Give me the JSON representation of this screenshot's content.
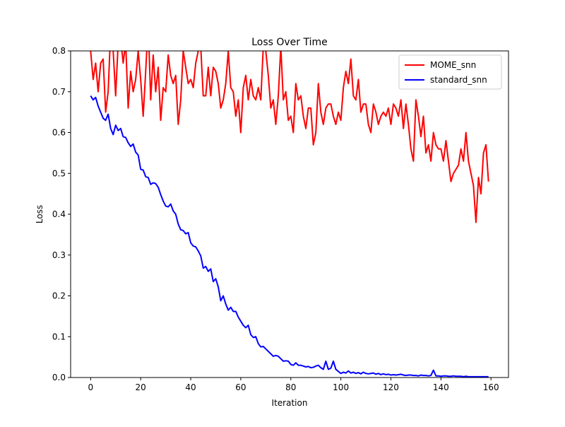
{
  "chart_data": {
    "type": "line",
    "title": "Loss Over Time",
    "xlabel": "Iteration",
    "ylabel": "Loss",
    "xlim": [
      -8,
      167
    ],
    "ylim": [
      0,
      0.8
    ],
    "xticks": [
      0,
      20,
      40,
      60,
      80,
      100,
      120,
      140,
      160
    ],
    "yticks": [
      0.0,
      0.1,
      0.2,
      0.3,
      0.4,
      0.5,
      0.6,
      0.7,
      0.8
    ],
    "grid": false,
    "legend_position": "upper right",
    "series": [
      {
        "name": "MOME_snn",
        "color": "#ff0000",
        "x": [
          0,
          1,
          2,
          3,
          4,
          5,
          6,
          7,
          8,
          9,
          10,
          11,
          12,
          13,
          14,
          15,
          16,
          17,
          18,
          19,
          20,
          21,
          22,
          23,
          24,
          25,
          26,
          27,
          28,
          29,
          30,
          31,
          32,
          33,
          34,
          35,
          36,
          37,
          38,
          39,
          40,
          41,
          42,
          43,
          44,
          45,
          46,
          47,
          48,
          49,
          50,
          51,
          52,
          53,
          54,
          55,
          56,
          57,
          58,
          59,
          60,
          61,
          62,
          63,
          64,
          65,
          66,
          67,
          68,
          69,
          70,
          71,
          72,
          73,
          74,
          75,
          76,
          77,
          78,
          79,
          80,
          81,
          82,
          83,
          84,
          85,
          86,
          87,
          88,
          89,
          90,
          91,
          92,
          93,
          94,
          95,
          96,
          97,
          98,
          99,
          100,
          101,
          102,
          103,
          104,
          105,
          106,
          107,
          108,
          109,
          110,
          111,
          112,
          113,
          114,
          115,
          116,
          117,
          118,
          119,
          120,
          121,
          122,
          123,
          124,
          125,
          126,
          127,
          128,
          129,
          130,
          131,
          132,
          133,
          134,
          135,
          136,
          137,
          138,
          139,
          140,
          141,
          142,
          143,
          144,
          145,
          146,
          147,
          148,
          149,
          150,
          151,
          152,
          153,
          154,
          155,
          156,
          157,
          158,
          159
        ],
        "y": [
          0.8,
          0.73,
          0.77,
          0.7,
          0.77,
          0.78,
          0.65,
          0.7,
          0.85,
          0.8,
          0.69,
          0.82,
          0.83,
          0.77,
          0.82,
          0.66,
          0.75,
          0.7,
          0.73,
          0.8,
          0.73,
          0.64,
          0.75,
          0.87,
          0.68,
          0.79,
          0.7,
          0.76,
          0.63,
          0.71,
          0.7,
          0.79,
          0.74,
          0.72,
          0.74,
          0.62,
          0.68,
          0.8,
          0.76,
          0.72,
          0.73,
          0.71,
          0.77,
          0.8,
          0.81,
          0.69,
          0.69,
          0.76,
          0.69,
          0.76,
          0.75,
          0.72,
          0.66,
          0.68,
          0.72,
          0.8,
          0.71,
          0.7,
          0.64,
          0.68,
          0.6,
          0.71,
          0.74,
          0.68,
          0.73,
          0.69,
          0.68,
          0.71,
          0.68,
          0.81,
          0.8,
          0.74,
          0.66,
          0.68,
          0.62,
          0.69,
          0.81,
          0.68,
          0.7,
          0.63,
          0.64,
          0.6,
          0.72,
          0.68,
          0.69,
          0.64,
          0.61,
          0.66,
          0.66,
          0.57,
          0.6,
          0.72,
          0.65,
          0.62,
          0.66,
          0.67,
          0.67,
          0.64,
          0.62,
          0.65,
          0.63,
          0.71,
          0.75,
          0.72,
          0.78,
          0.69,
          0.68,
          0.73,
          0.65,
          0.67,
          0.67,
          0.62,
          0.6,
          0.67,
          0.65,
          0.62,
          0.64,
          0.65,
          0.64,
          0.66,
          0.62,
          0.67,
          0.66,
          0.64,
          0.68,
          0.61,
          0.67,
          0.62,
          0.56,
          0.53,
          0.68,
          0.64,
          0.59,
          0.64,
          0.55,
          0.57,
          0.53,
          0.6,
          0.57,
          0.56,
          0.56,
          0.53,
          0.58,
          0.53,
          0.48,
          0.5,
          0.51,
          0.52,
          0.56,
          0.53,
          0.6,
          0.53,
          0.5,
          0.47,
          0.38,
          0.49,
          0.45,
          0.55,
          0.57,
          0.48
        ]
      },
      {
        "name": "standard_snn",
        "color": "#0000ff",
        "x": [
          0,
          1,
          2,
          3,
          4,
          5,
          6,
          7,
          8,
          9,
          10,
          11,
          12,
          13,
          14,
          15,
          16,
          17,
          18,
          19,
          20,
          21,
          22,
          23,
          24,
          25,
          26,
          27,
          28,
          29,
          30,
          31,
          32,
          33,
          34,
          35,
          36,
          37,
          38,
          39,
          40,
          41,
          42,
          43,
          44,
          45,
          46,
          47,
          48,
          49,
          50,
          51,
          52,
          53,
          54,
          55,
          56,
          57,
          58,
          59,
          60,
          61,
          62,
          63,
          64,
          65,
          66,
          67,
          68,
          69,
          70,
          71,
          72,
          73,
          74,
          75,
          76,
          77,
          78,
          79,
          80,
          81,
          82,
          83,
          84,
          85,
          86,
          87,
          88,
          89,
          90,
          91,
          92,
          93,
          94,
          95,
          96,
          97,
          98,
          99,
          100,
          101,
          102,
          103,
          104,
          105,
          106,
          107,
          108,
          109,
          110,
          111,
          112,
          113,
          114,
          115,
          116,
          117,
          118,
          119,
          120,
          121,
          122,
          123,
          124,
          125,
          126,
          127,
          128,
          129,
          130,
          131,
          132,
          133,
          134,
          135,
          136,
          137,
          138,
          139,
          140,
          141,
          142,
          143,
          144,
          145,
          146,
          147,
          148,
          149,
          150,
          151,
          152,
          153,
          154,
          155,
          156,
          157,
          158,
          159
        ],
        "y": [
          0.69,
          0.68,
          0.686,
          0.665,
          0.65,
          0.635,
          0.63,
          0.645,
          0.61,
          0.595,
          0.618,
          0.605,
          0.61,
          0.59,
          0.588,
          0.575,
          0.566,
          0.572,
          0.552,
          0.545,
          0.51,
          0.508,
          0.492,
          0.49,
          0.473,
          0.477,
          0.475,
          0.466,
          0.448,
          0.432,
          0.42,
          0.418,
          0.425,
          0.408,
          0.4,
          0.376,
          0.362,
          0.36,
          0.352,
          0.355,
          0.33,
          0.322,
          0.32,
          0.31,
          0.298,
          0.268,
          0.272,
          0.26,
          0.266,
          0.235,
          0.242,
          0.222,
          0.188,
          0.2,
          0.18,
          0.165,
          0.172,
          0.162,
          0.162,
          0.148,
          0.138,
          0.128,
          0.122,
          0.128,
          0.105,
          0.098,
          0.1,
          0.083,
          0.075,
          0.076,
          0.07,
          0.064,
          0.058,
          0.052,
          0.054,
          0.052,
          0.046,
          0.04,
          0.041,
          0.04,
          0.032,
          0.03,
          0.036,
          0.03,
          0.03,
          0.028,
          0.026,
          0.027,
          0.024,
          0.025,
          0.028,
          0.03,
          0.024,
          0.02,
          0.04,
          0.02,
          0.023,
          0.04,
          0.02,
          0.015,
          0.01,
          0.013,
          0.011,
          0.016,
          0.011,
          0.013,
          0.01,
          0.012,
          0.009,
          0.013,
          0.01,
          0.009,
          0.01,
          0.011,
          0.008,
          0.01,
          0.007,
          0.009,
          0.007,
          0.008,
          0.006,
          0.007,
          0.006,
          0.007,
          0.008,
          0.006,
          0.005,
          0.006,
          0.006,
          0.005,
          0.005,
          0.004,
          0.006,
          0.005,
          0.005,
          0.004,
          0.005,
          0.018,
          0.004,
          0.004,
          0.003,
          0.004,
          0.004,
          0.003,
          0.003,
          0.004,
          0.003,
          0.003,
          0.003,
          0.002,
          0.003,
          0.002,
          0.002,
          0.002,
          0.002,
          0.002,
          0.002,
          0.002,
          0.002,
          0.002
        ]
      }
    ]
  }
}
